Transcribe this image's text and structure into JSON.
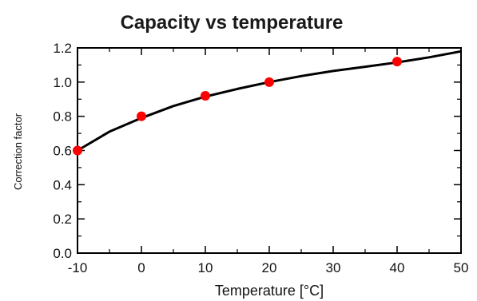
{
  "chart_data": {
    "type": "scatter",
    "title": "Capacity vs temperature",
    "xlabel": "Temperature [°C]",
    "ylabel": "Correction factor",
    "xlim": [
      -10,
      50
    ],
    "ylim": [
      0.0,
      1.2
    ],
    "x_ticks": [
      -10,
      0,
      10,
      20,
      30,
      40,
      50
    ],
    "x_tick_labels": [
      "-10",
      "0",
      "10",
      "20",
      "30",
      "40",
      "50"
    ],
    "y_ticks": [
      0.0,
      0.2,
      0.4,
      0.6,
      0.8,
      1.0,
      1.2
    ],
    "y_tick_labels": [
      "0.0",
      "0.2",
      "0.4",
      "0.6",
      "0.8",
      "1.0",
      "1.2"
    ],
    "grid": false,
    "series": [
      {
        "kind": "points",
        "color": "#ff0000",
        "x": [
          -10,
          0,
          10,
          20,
          40
        ],
        "y": [
          0.6,
          0.8,
          0.92,
          1.0,
          1.12
        ]
      },
      {
        "kind": "line",
        "color": "#000000",
        "x": [
          -10,
          -5,
          0,
          5,
          10,
          15,
          20,
          25,
          30,
          35,
          40,
          45,
          50
        ],
        "y": [
          0.6,
          0.71,
          0.79,
          0.86,
          0.915,
          0.96,
          1.0,
          1.035,
          1.065,
          1.09,
          1.115,
          1.145,
          1.18
        ]
      }
    ]
  }
}
